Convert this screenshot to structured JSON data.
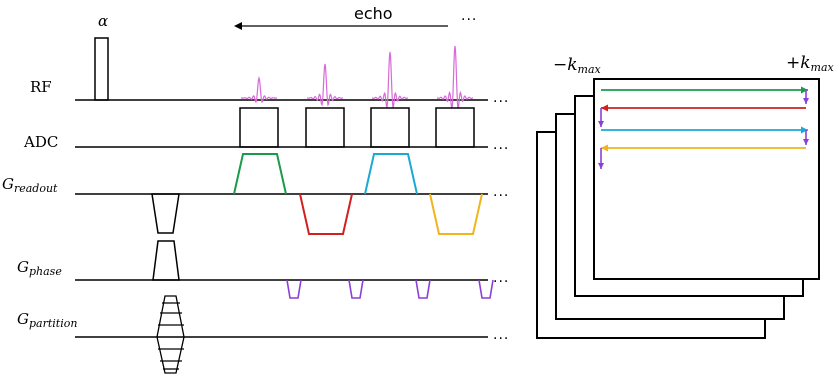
{
  "labels": {
    "alpha": "α",
    "echo": "echo",
    "rf": "RF",
    "adc": "ADC",
    "g_symbol": "G",
    "readout_sub": "readout",
    "phase_sub": "phase",
    "partition_sub": "partition",
    "ellipsis": "...",
    "kspace_left": "−k",
    "kspace_right": "+k",
    "kmax_sub": "max"
  },
  "colors": {
    "echo1": "#1a9a4a",
    "echo2": "#d21f1f",
    "echo3": "#1aa9d6",
    "echo4": "#f0b41e",
    "phase_blip": "#8a3fd8",
    "rf_pulse": "#d86ad8",
    "axis": "#000000"
  },
  "diagram": {
    "echo_count": 4,
    "echo_gradient_polarity": [
      1,
      -1,
      1,
      -1
    ],
    "phase_blip_count": 4,
    "partition_steps": 5,
    "kspace_stack_count": 4,
    "kspace_trajectory_lines": 4
  }
}
